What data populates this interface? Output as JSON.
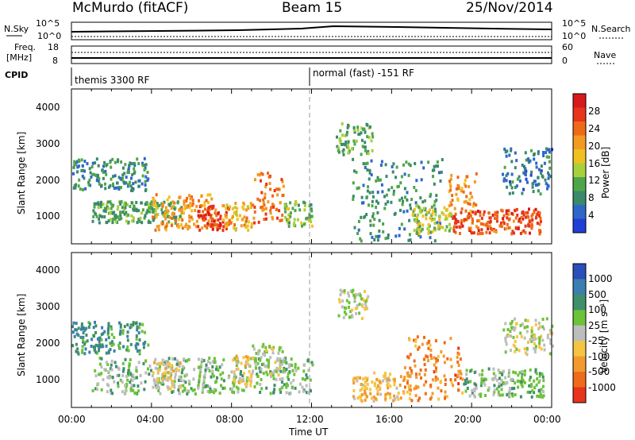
{
  "header": {
    "station": "McMurdo (fitACF)",
    "beam": "Beam 15",
    "date": "25/Nov/2014"
  },
  "top_panel": {
    "left_label": "N.Sky",
    "right_label": "N.Search",
    "left_ticks": [
      "10^5",
      "10^0"
    ],
    "right_ticks": [
      "10^5",
      "10^0"
    ]
  },
  "freq_panel": {
    "left_label_1": "Freq.",
    "left_label_2": "[MHz]",
    "right_label": "Nave",
    "left_ticks": [
      "18",
      "8"
    ],
    "right_ticks": [
      "60",
      "0"
    ]
  },
  "cpid_panel": {
    "label": "CPID",
    "modes": [
      "themis 3300 RF",
      "normal (fast) -151 RF"
    ]
  },
  "x_axis": {
    "ticks": [
      "00:00",
      "04:00",
      "08:00",
      "12:00",
      "16:00",
      "20:00",
      "00:00"
    ],
    "label": "Time UT"
  },
  "panels": [
    {
      "ylabel": "Slant Range [km]",
      "yticks": [
        "1000",
        "2000",
        "3000",
        "4000"
      ],
      "colorbar_label": "Power [dB]",
      "colorbar_ticks": [
        "4",
        "8",
        "12",
        "16",
        "20",
        "24",
        "28"
      ],
      "colors": [
        "#1f3fd6",
        "#2f67c9",
        "#3a8a6a",
        "#4fa64a",
        "#a8d03c",
        "#f0c020",
        "#f39a20",
        "#ef6a18",
        "#e8341a",
        "#d81a1a"
      ]
    },
    {
      "ylabel": "Slant Range [km]",
      "yticks": [
        "1000",
        "2000",
        "3000",
        "4000"
      ],
      "colorbar_label": "Velocity [m s⁻¹]",
      "colorbar_ticks": [
        "1000",
        "500",
        "100",
        "25",
        "-25",
        "-100",
        "-500",
        "-1000"
      ],
      "colors": [
        "#2a4fb8",
        "#3a7fb0",
        "#3f8f6a",
        "#6cc23a",
        "#bdbdbd",
        "#f5c542",
        "#f29a2e",
        "#ef6a1a",
        "#e8341a"
      ]
    }
  ],
  "chart_data": [
    {
      "type": "heatmap",
      "title": "Power [dB]",
      "xlabel": "Time UT",
      "ylabel": "Slant Range [km]",
      "xlim_hours": [
        0,
        24
      ],
      "ylim_km": [
        180,
        4500
      ],
      "clim": [
        0,
        30
      ],
      "blobs": [
        {
          "t0": 0.0,
          "t1": 3.8,
          "r0": 1700,
          "r1": 2600,
          "value": 8
        },
        {
          "t0": 1.0,
          "t1": 5.5,
          "r0": 800,
          "r1": 1400,
          "value": 10
        },
        {
          "t0": 4.0,
          "t1": 7.2,
          "r0": 600,
          "r1": 1600,
          "value": 20
        },
        {
          "t0": 6.2,
          "t1": 7.8,
          "r0": 600,
          "r1": 1300,
          "value": 26
        },
        {
          "t0": 7.5,
          "t1": 9.0,
          "r0": 600,
          "r1": 1400,
          "value": 18
        },
        {
          "t0": 9.0,
          "t1": 10.6,
          "r0": 800,
          "r1": 2200,
          "value": 22
        },
        {
          "t0": 10.6,
          "t1": 12.0,
          "r0": 700,
          "r1": 1400,
          "value": 12
        },
        {
          "t0": 13.2,
          "t1": 15.0,
          "r0": 2700,
          "r1": 3600,
          "value": 10
        },
        {
          "t0": 14.0,
          "t1": 18.5,
          "r0": 300,
          "r1": 2600,
          "value": 8
        },
        {
          "t0": 17.0,
          "t1": 19.0,
          "r0": 500,
          "r1": 1300,
          "value": 14
        },
        {
          "t0": 18.8,
          "t1": 20.2,
          "r0": 800,
          "r1": 2200,
          "value": 20
        },
        {
          "t0": 19.0,
          "t1": 23.4,
          "r0": 500,
          "r1": 1200,
          "value": 24
        },
        {
          "t0": 21.5,
          "t1": 24.0,
          "r0": 1600,
          "r1": 2900,
          "value": 6
        }
      ]
    },
    {
      "type": "heatmap",
      "title": "Velocity [m s⁻¹]",
      "xlabel": "Time UT",
      "ylabel": "Slant Range [km]",
      "xlim_hours": [
        0,
        24
      ],
      "ylim_km": [
        180,
        4500
      ],
      "clim": [
        -1000,
        1000
      ],
      "blobs": [
        {
          "t0": 0.0,
          "t1": 3.8,
          "r0": 1700,
          "r1": 2600,
          "value": 450
        },
        {
          "t0": 1.0,
          "t1": 12.0,
          "r0": 600,
          "r1": 1600,
          "value": 200
        },
        {
          "t0": 4.0,
          "t1": 5.5,
          "r0": 700,
          "r1": 1500,
          "value": -120
        },
        {
          "t0": 8.0,
          "t1": 9.0,
          "r0": 800,
          "r1": 1700,
          "value": -150
        },
        {
          "t0": 9.0,
          "t1": 10.5,
          "r0": 1000,
          "r1": 2000,
          "value": 60
        },
        {
          "t0": 13.3,
          "t1": 14.8,
          "r0": 2700,
          "r1": 3500,
          "value": 0
        },
        {
          "t0": 14.0,
          "t1": 17.0,
          "r0": 400,
          "r1": 1200,
          "value": -300
        },
        {
          "t0": 16.5,
          "t1": 19.5,
          "r0": 400,
          "r1": 2200,
          "value": -550
        },
        {
          "t0": 19.5,
          "t1": 23.6,
          "r0": 500,
          "r1": 1300,
          "value": 200
        },
        {
          "t0": 21.5,
          "t1": 24.0,
          "r0": 1700,
          "r1": 2700,
          "value": 0
        }
      ]
    }
  ]
}
